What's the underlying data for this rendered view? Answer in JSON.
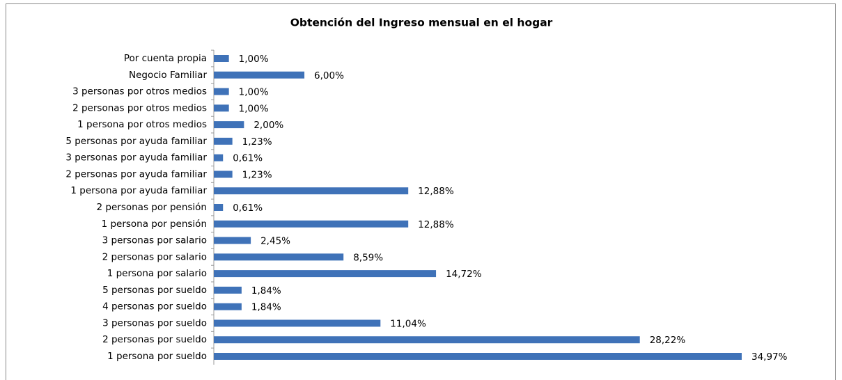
{
  "chart_data": {
    "type": "barh",
    "title": "Obtención del Ingreso mensual en el hogar",
    "categories": [
      "Por cuenta propia",
      "Negocio Familiar",
      "3 personas por otros medios",
      "2 personas por otros medios",
      "1 persona por otros medios",
      "5 personas por ayuda familiar",
      "3 personas por ayuda familiar",
      "2 personas por ayuda familiar",
      "1 persona por ayuda familiar",
      "2 personas por pensión",
      "1 persona por pensión",
      "3 personas por salario",
      "2 personas por salario",
      "1 persona por salario",
      "5 personas por sueldo",
      "4 personas por sueldo",
      "3 personas por sueldo",
      "2 personas por sueldo",
      "1 persona por sueldo"
    ],
    "values": [
      1.0,
      6.0,
      1.0,
      1.0,
      2.0,
      1.23,
      0.61,
      1.23,
      12.88,
      0.61,
      12.88,
      2.45,
      8.59,
      14.72,
      1.84,
      1.84,
      11.04,
      28.22,
      34.97
    ],
    "value_labels": [
      "1,00%",
      "6,00%",
      "1,00%",
      "1,00%",
      "2,00%",
      "1,23%",
      "0,61%",
      "1,23%",
      "12,88%",
      "0,61%",
      "12,88%",
      "2,45%",
      "8,59%",
      "14,72%",
      "1,84%",
      "1,84%",
      "11,04%",
      "28,22%",
      "34,97%"
    ],
    "color": "#3f72b8"
  }
}
